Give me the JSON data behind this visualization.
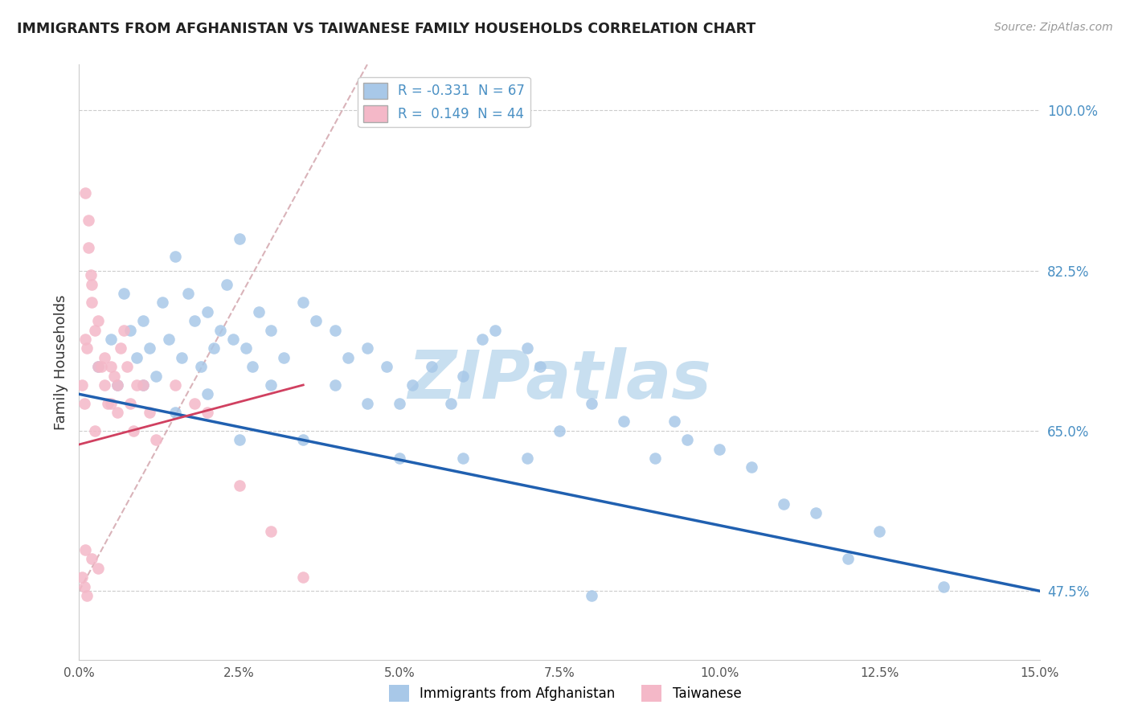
{
  "title": "IMMIGRANTS FROM AFGHANISTAN VS TAIWANESE FAMILY HOUSEHOLDS CORRELATION CHART",
  "source": "Source: ZipAtlas.com",
  "ylabel": "Family Households",
  "legend_label1": "Immigrants from Afghanistan",
  "legend_label2": "Taiwanese",
  "R1": -0.331,
  "N1": 67,
  "R2": 0.149,
  "N2": 44,
  "xlim": [
    0.0,
    15.0
  ],
  "ylim": [
    40.0,
    105.0
  ],
  "yticks": [
    47.5,
    65.0,
    82.5,
    100.0
  ],
  "xticks": [
    0.0,
    2.5,
    5.0,
    7.5,
    10.0,
    12.5,
    15.0
  ],
  "color_blue": "#A8C8E8",
  "color_pink": "#F4B8C8",
  "trendline_blue": "#2060B0",
  "trendline_pink": "#D04060",
  "trendline_dashed_color": "#D0A0A8",
  "watermark": "ZIPatlas",
  "watermark_color": "#C8DFF0",
  "blue_scatter_x": [
    0.3,
    0.5,
    0.6,
    0.7,
    0.8,
    0.9,
    1.0,
    1.1,
    1.2,
    1.3,
    1.4,
    1.5,
    1.6,
    1.7,
    1.8,
    1.9,
    2.0,
    2.1,
    2.2,
    2.3,
    2.4,
    2.5,
    2.6,
    2.7,
    2.8,
    3.0,
    3.2,
    3.5,
    3.7,
    4.0,
    4.2,
    4.5,
    4.8,
    5.0,
    5.2,
    5.5,
    5.8,
    6.0,
    6.3,
    6.5,
    7.0,
    7.2,
    7.5,
    8.0,
    8.5,
    9.0,
    9.3,
    9.5,
    10.0,
    10.5,
    11.0,
    11.5,
    12.0,
    12.5,
    13.5,
    1.0,
    1.5,
    2.0,
    2.5,
    3.0,
    3.5,
    4.0,
    4.5,
    5.0,
    6.0,
    7.0,
    8.0
  ],
  "blue_scatter_y": [
    72,
    75,
    70,
    80,
    76,
    73,
    77,
    74,
    71,
    79,
    75,
    84,
    73,
    80,
    77,
    72,
    78,
    74,
    76,
    81,
    75,
    86,
    74,
    72,
    78,
    76,
    73,
    79,
    77,
    76,
    73,
    74,
    72,
    68,
    70,
    72,
    68,
    71,
    75,
    76,
    74,
    72,
    65,
    68,
    66,
    62,
    66,
    64,
    63,
    61,
    57,
    56,
    51,
    54,
    48,
    70,
    67,
    69,
    64,
    70,
    64,
    70,
    68,
    62,
    62,
    62,
    47
  ],
  "pink_scatter_x": [
    0.05,
    0.08,
    0.1,
    0.12,
    0.15,
    0.18,
    0.2,
    0.25,
    0.3,
    0.35,
    0.4,
    0.45,
    0.5,
    0.55,
    0.6,
    0.65,
    0.7,
    0.75,
    0.8,
    0.85,
    0.9,
    1.0,
    1.1,
    1.2,
    1.5,
    1.8,
    2.0,
    2.5,
    3.0,
    3.5,
    0.1,
    0.15,
    0.2,
    0.3,
    0.4,
    0.5,
    0.1,
    0.2,
    0.3,
    0.05,
    0.08,
    0.12,
    0.25,
    0.6
  ],
  "pink_scatter_y": [
    70,
    68,
    75,
    74,
    88,
    82,
    79,
    76,
    72,
    72,
    70,
    68,
    72,
    71,
    70,
    74,
    76,
    72,
    68,
    65,
    70,
    70,
    67,
    64,
    70,
    68,
    67,
    59,
    54,
    49,
    91,
    85,
    81,
    77,
    73,
    68,
    52,
    51,
    50,
    49,
    48,
    47,
    65,
    67
  ],
  "blue_trendline_x0": 0.0,
  "blue_trendline_y0": 69.0,
  "blue_trendline_x1": 15.0,
  "blue_trendline_y1": 47.5,
  "pink_trendline_x0": 0.0,
  "pink_trendline_y0": 63.5,
  "pink_trendline_x1": 3.5,
  "pink_trendline_y1": 70.0,
  "dashed_x0": 0.0,
  "dashed_y0": 47.5,
  "dashed_x1": 4.5,
  "dashed_y1": 105.0
}
